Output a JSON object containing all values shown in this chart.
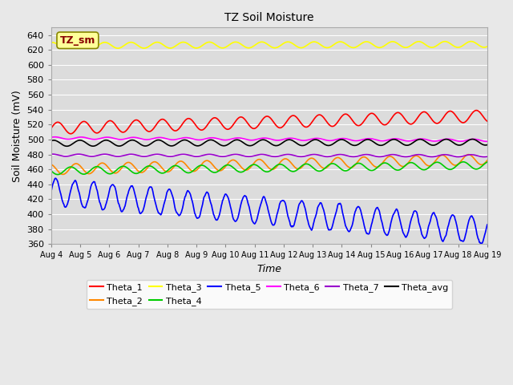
{
  "title": "TZ Soil Moisture",
  "xlabel": "Time",
  "ylabel": "Soil Moisture (mV)",
  "ylim": [
    360,
    650
  ],
  "yticks": [
    360,
    380,
    400,
    420,
    440,
    460,
    480,
    500,
    520,
    540,
    560,
    580,
    600,
    620,
    640
  ],
  "fig_bg_color": "#e8e8e8",
  "plot_bg_color": "#dcdcdc",
  "grid_color": "#ffffff",
  "start_day": 4,
  "end_day": 19,
  "label_text": "TZ_sm",
  "label_bg_color": "#ffff99",
  "label_text_color": "#880000",
  "label_edge_color": "#888800",
  "series_order": [
    "Theta_1",
    "Theta_2",
    "Theta_3",
    "Theta_4",
    "Theta_5",
    "Theta_6",
    "Theta_7",
    "Theta_avg"
  ],
  "series": {
    "Theta_1": {
      "color": "#ff0000",
      "base": 515,
      "amp": 8,
      "trend": 1.1,
      "period": 0.9,
      "phase": 0.0,
      "special": false
    },
    "Theta_2": {
      "color": "#ff8800",
      "base": 460,
      "amp": 7,
      "trend": 0.9,
      "period": 0.9,
      "phase": 0.3,
      "special": false
    },
    "Theta_3": {
      "color": "#ffff00",
      "base": 626,
      "amp": 4,
      "trend": 0.1,
      "period": 0.9,
      "phase": 0.2,
      "special": false
    },
    "Theta_4": {
      "color": "#00cc00",
      "base": 458,
      "amp": 5,
      "trend": 0.5,
      "period": 0.9,
      "phase": 0.5,
      "special": false
    },
    "Theta_5": {
      "color": "#0000ff",
      "base": 430,
      "amp": 18,
      "trend": -3.5,
      "period": 0.65,
      "phase": 0.0,
      "special": true
    },
    "Theta_6": {
      "color": "#ff00ff",
      "base": 502,
      "amp": 1.5,
      "trend": -0.2,
      "period": 0.9,
      "phase": 0.1,
      "special": false
    },
    "Theta_7": {
      "color": "#9900cc",
      "base": 479,
      "amp": 1.5,
      "trend": -0.05,
      "period": 0.9,
      "phase": 0.2,
      "special": false
    },
    "Theta_avg": {
      "color": "#000000",
      "base": 495,
      "amp": 4,
      "trend": 0.1,
      "period": 0.9,
      "phase": 0.15,
      "special": false
    }
  }
}
